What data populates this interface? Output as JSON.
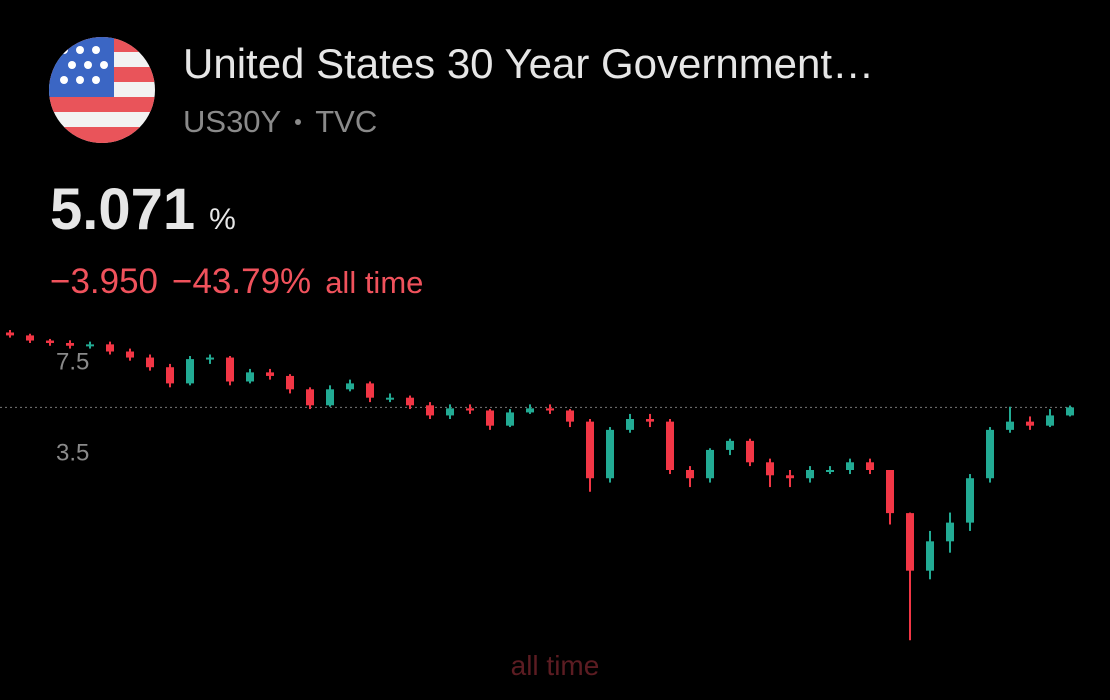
{
  "header": {
    "title": "United States 30 Year Government…",
    "symbol": "US30Y",
    "exchange": "TVC",
    "price": "5.071",
    "unit": "%",
    "change": "−3.950",
    "change_percent": "−43.79%",
    "period": "all time"
  },
  "chart_data": {
    "type": "candlestick",
    "log_scale": true,
    "ylim": [
      0.6,
      11
    ],
    "yticks": [
      7.5,
      3.5
    ],
    "up_color": "#22ab94",
    "down_color": "#f23645",
    "range_label": "all time",
    "open": [
      9.5,
      9.27,
      8.88,
      8.7,
      8.5,
      8.6,
      8.1,
      7.7,
      7.1,
      6.2,
      7.6,
      7.7,
      6.3,
      6.8,
      6.6,
      5.9,
      5.16,
      5.9,
      6.2,
      5.5,
      5.5,
      5.16,
      4.74,
      5.03,
      4.94,
      4.35,
      4.86,
      5.03,
      4.94,
      4.5,
      2.8,
      4.2,
      4.6,
      4.5,
      3.0,
      2.8,
      3.55,
      3.83,
      3.2,
      2.87,
      2.8,
      3.0,
      3.0,
      3.2,
      3.0,
      2.09,
      1.29,
      1.65,
      1.93,
      2.8,
      4.2,
      4.5,
      4.35,
      4.74
    ],
    "high": [
      9.7,
      9.4,
      9.0,
      8.9,
      8.8,
      8.8,
      8.3,
      7.9,
      7.3,
      7.8,
      7.9,
      7.8,
      7.0,
      7.0,
      6.7,
      6.0,
      6.1,
      6.4,
      6.3,
      5.7,
      5.6,
      5.3,
      5.2,
      5.2,
      5.0,
      5.0,
      5.2,
      5.2,
      5.0,
      4.6,
      4.3,
      4.8,
      4.8,
      4.6,
      3.1,
      3.6,
      3.9,
      3.9,
      3.3,
      3.0,
      3.1,
      3.1,
      3.3,
      3.3,
      3.0,
      2.1,
      1.8,
      2.1,
      2.9,
      4.3,
      5.1,
      4.7,
      5.0,
      5.15
    ],
    "low": [
      9.1,
      8.7,
      8.5,
      8.3,
      8.3,
      7.9,
      7.5,
      6.9,
      6.0,
      6.1,
      7.3,
      6.1,
      6.2,
      6.4,
      5.7,
      5.0,
      5.1,
      5.8,
      5.3,
      5.3,
      5.0,
      4.6,
      4.6,
      4.8,
      4.2,
      4.3,
      4.8,
      4.8,
      4.3,
      2.5,
      2.7,
      4.1,
      4.3,
      2.9,
      2.6,
      2.7,
      3.4,
      3.1,
      2.6,
      2.6,
      2.7,
      2.9,
      2.9,
      2.9,
      1.9,
      0.72,
      1.2,
      1.5,
      1.8,
      2.7,
      4.1,
      4.2,
      4.3,
      4.7
    ],
    "close": [
      9.27,
      8.88,
      8.7,
      8.5,
      8.6,
      8.1,
      7.7,
      7.1,
      6.2,
      7.6,
      7.7,
      6.3,
      6.8,
      6.6,
      5.9,
      5.16,
      5.9,
      6.2,
      5.5,
      5.5,
      5.16,
      4.74,
      5.03,
      4.94,
      4.35,
      4.86,
      5.03,
      4.94,
      4.5,
      2.8,
      4.2,
      4.6,
      4.5,
      3.0,
      2.8,
      3.55,
      3.83,
      3.2,
      2.87,
      2.8,
      3.0,
      3.0,
      3.2,
      3.0,
      2.09,
      1.29,
      1.65,
      1.93,
      2.8,
      4.2,
      4.5,
      4.35,
      4.74,
      5.071
    ]
  }
}
